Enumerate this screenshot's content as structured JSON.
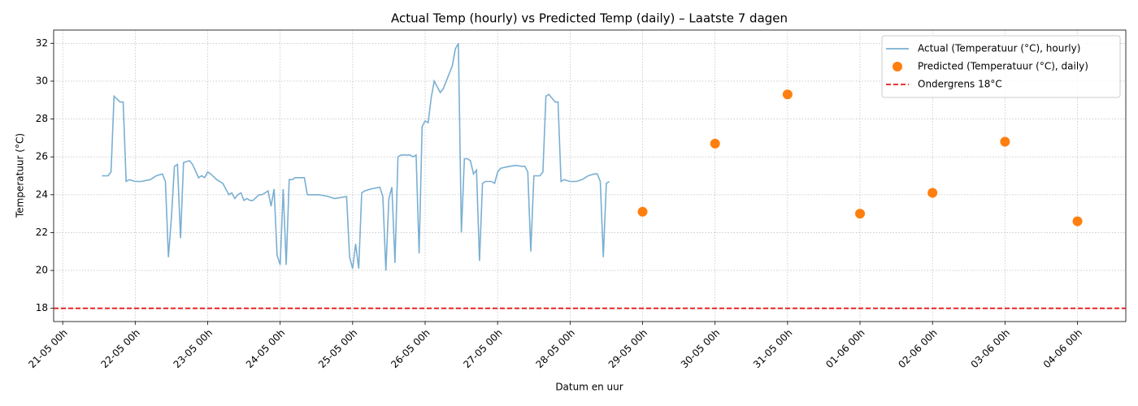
{
  "chart_data": {
    "type": "line",
    "title": "Actual Temp (hourly) vs Predicted Temp (daily) – Laatste 7 dagen",
    "x_label": "Datum en uur",
    "y_label": "Temperatuur (°C)",
    "xlim": [
      "20-05 21h",
      "04-06 16h"
    ],
    "xticks": [
      "21-05 00h",
      "22-05 00h",
      "23-05 00h",
      "24-05 00h",
      "25-05 00h",
      "26-05 00h",
      "27-05 00h",
      "28-05 00h",
      "29-05 00h",
      "30-05 00h",
      "31-05 00h",
      "01-06 00h",
      "02-06 00h",
      "03-06 00h",
      "04-06 00h"
    ],
    "ylim": [
      17.3,
      32.7
    ],
    "yticks": [
      18,
      20,
      22,
      24,
      26,
      28,
      30,
      32
    ],
    "grid": true,
    "legend": "upper right",
    "series": [
      {
        "name": "Actual (Temperatuur (°C), hourly)",
        "type": "line",
        "color": "#7aafd2",
        "x": [
          "21-05 13h",
          "21-05 15h",
          "21-05 16h",
          "21-05 17h",
          "21-05 19h",
          "21-05 20h",
          "21-05 21h",
          "21-05 22h",
          "22-05 00h",
          "22-05 02h",
          "22-05 05h",
          "22-05 07h",
          "22-05 09h",
          "22-05 10h",
          "22-05 11h",
          "22-05 12h",
          "22-05 13h",
          "22-05 14h",
          "22-05 15h",
          "22-05 16h",
          "22-05 18h",
          "22-05 19h",
          "22-05 21h",
          "22-05 22h",
          "22-05 23h",
          "23-05 00h",
          "23-05 01h",
          "23-05 03h",
          "23-05 05h",
          "23-05 07h",
          "23-05 08h",
          "23-05 09h",
          "23-05 10h",
          "23-05 11h",
          "23-05 12h",
          "23-05 13h",
          "23-05 14h",
          "23-05 15h",
          "23-05 17h",
          "23-05 18h",
          "23-05 19h",
          "23-05 20h",
          "23-05 21h",
          "23-05 22h",
          "23-05 23h",
          "24-05 00h",
          "24-05 01h",
          "24-05 02h",
          "24-05 03h",
          "24-05 04h",
          "24-05 05h",
          "24-05 07h",
          "24-05 08h",
          "24-05 09h",
          "24-05 13h",
          "24-05 16h",
          "24-05 18h",
          "24-05 22h",
          "24-05 23h",
          "25-05 00h",
          "25-05 01h",
          "25-05 02h",
          "25-05 03h",
          "25-05 04h",
          "25-05 06h",
          "25-05 09h",
          "25-05 10h",
          "25-05 11h",
          "25-05 12h",
          "25-05 13h",
          "25-05 14h",
          "25-05 15h",
          "25-05 16h",
          "25-05 19h",
          "25-05 20h",
          "25-05 21h",
          "25-05 22h",
          "25-05 23h",
          "26-05 00h",
          "26-05 01h",
          "26-05 02h",
          "26-05 03h",
          "26-05 05h",
          "26-05 06h",
          "26-05 07h",
          "26-05 09h",
          "26-05 10h",
          "26-05 11h",
          "26-05 12h",
          "26-05 13h",
          "26-05 14h",
          "26-05 15h",
          "26-05 16h",
          "26-05 17h",
          "26-05 18h",
          "26-05 19h",
          "26-05 20h",
          "26-05 22h",
          "26-05 23h",
          "27-05 00h",
          "27-05 01h",
          "27-05 04h",
          "27-05 06h",
          "27-05 08h",
          "27-05 09h",
          "27-05 10h",
          "27-05 11h",
          "27-05 12h",
          "27-05 14h",
          "27-05 15h",
          "27-05 16h",
          "27-05 17h",
          "27-05 19h",
          "27-05 20h",
          "27-05 21h",
          "27-05 22h",
          "28-05 00h",
          "28-05 02h",
          "28-05 04h",
          "28-05 06h",
          "28-05 08h",
          "28-05 09h",
          "28-05 10h",
          "28-05 11h",
          "28-05 12h",
          "28-05 13h"
        ],
        "values": [
          25.0,
          25.0,
          25.2,
          29.2,
          28.9,
          28.9,
          24.7,
          24.8,
          24.7,
          24.7,
          24.8,
          25.0,
          25.1,
          24.7,
          20.7,
          22.8,
          25.5,
          25.6,
          21.7,
          25.7,
          25.8,
          25.6,
          24.9,
          25.0,
          24.9,
          25.2,
          25.1,
          24.8,
          24.6,
          24.0,
          24.1,
          23.8,
          24.0,
          24.1,
          23.7,
          23.8,
          23.7,
          23.7,
          24.0,
          24.0,
          24.1,
          24.2,
          23.4,
          24.3,
          20.8,
          20.3,
          24.3,
          20.3,
          24.8,
          24.8,
          24.9,
          24.9,
          24.9,
          24.0,
          24.0,
          23.9,
          23.8,
          23.9,
          20.7,
          20.1,
          21.4,
          20.1,
          24.1,
          24.2,
          24.3,
          24.4,
          23.9,
          20.0,
          23.8,
          24.4,
          20.4,
          26.0,
          26.1,
          26.1,
          26.0,
          26.1,
          20.9,
          27.6,
          27.9,
          27.8,
          29.1,
          30.0,
          29.4,
          29.6,
          30.0,
          30.8,
          31.7,
          32.0,
          22.0,
          25.9,
          25.9,
          25.8,
          25.1,
          25.3,
          20.5,
          24.6,
          24.7,
          24.7,
          24.6,
          25.2,
          25.4,
          25.5,
          25.55,
          25.5,
          25.5,
          25.2,
          21.0,
          25.0,
          25.0,
          25.2,
          29.2,
          29.3,
          28.9,
          28.9,
          24.7,
          24.8,
          24.7,
          24.7,
          24.8,
          25.0,
          25.1,
          25.1,
          24.7,
          20.7,
          24.6,
          24.7
        ]
      },
      {
        "name": "Predicted (Temperatuur (°C), daily)",
        "type": "scatter",
        "color": "#ff7f0e",
        "x": [
          "29-05 00h",
          "30-05 00h",
          "31-05 00h",
          "01-06 00h",
          "02-06 00h",
          "03-06 00h",
          "04-06 00h"
        ],
        "values": [
          23.1,
          26.7,
          29.3,
          23.0,
          24.1,
          26.8,
          22.6
        ]
      }
    ],
    "hlines": [
      {
        "name": "Ondergrens 18°C",
        "value": 18,
        "color": "#e41a1c",
        "style": "dashed"
      }
    ]
  }
}
